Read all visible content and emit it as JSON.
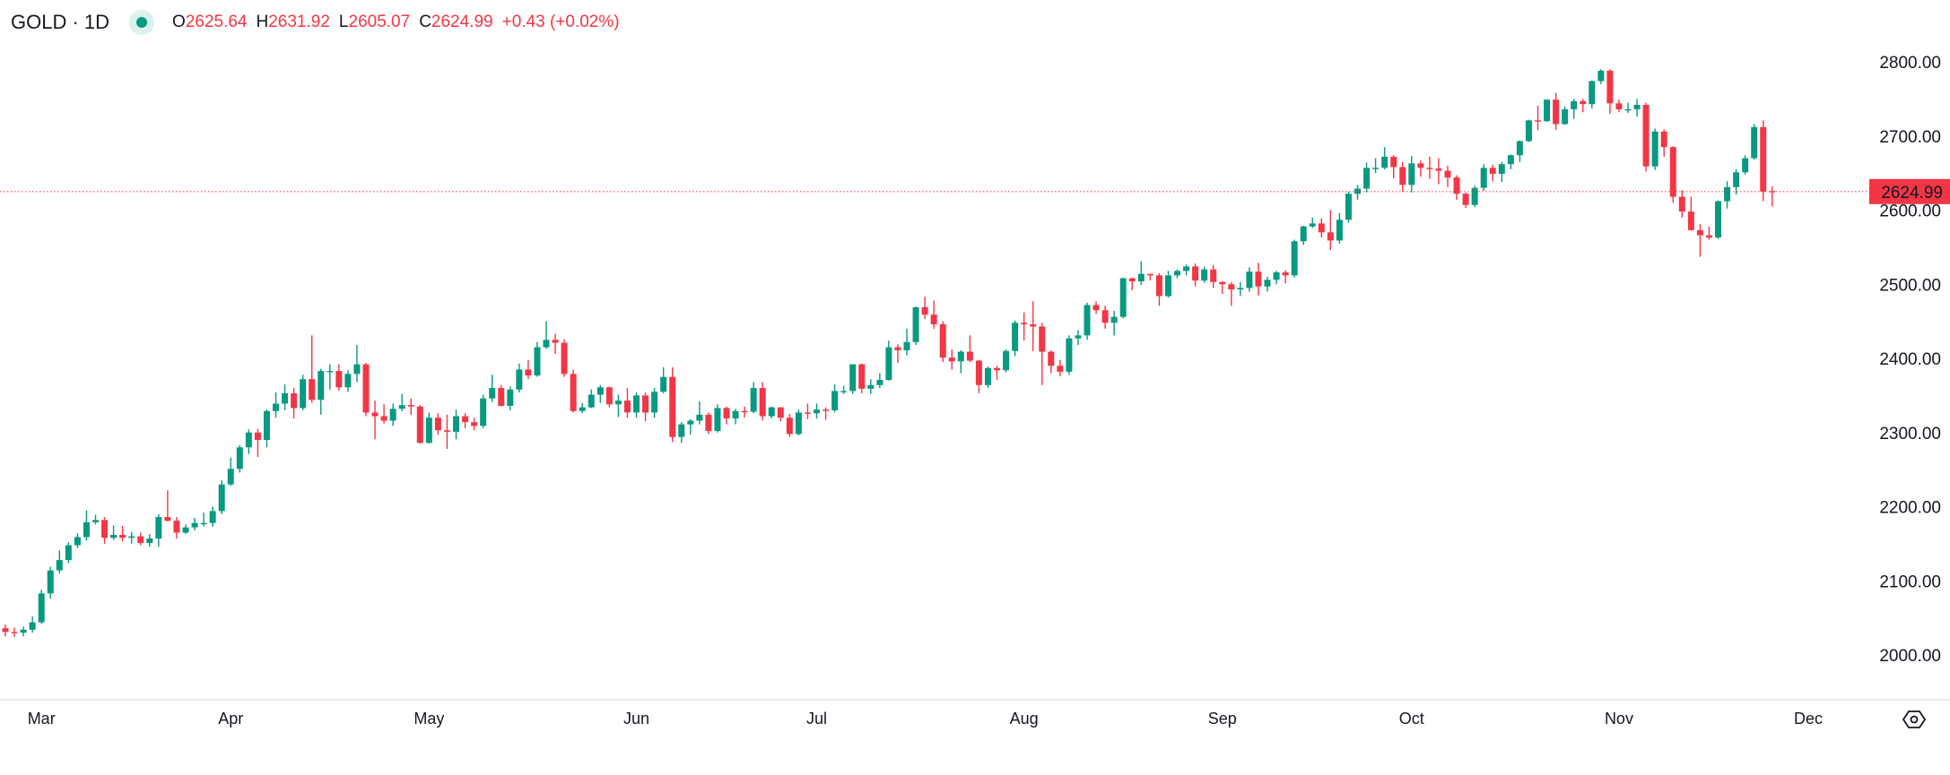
{
  "header": {
    "symbol": "GOLD · 1D",
    "market_status_icon": "market-open-dot",
    "open_key": "O",
    "open": "2625.64",
    "high_key": "H",
    "high": "2631.92",
    "low_key": "L",
    "low": "2605.07",
    "close_key": "C",
    "close": "2624.99",
    "change": "+0.43 (+0.02%)"
  },
  "colors": {
    "up": "#089981",
    "down": "#F23645",
    "last_price": "#F23645",
    "axis_text": "#131722",
    "border": "#e0e3eb"
  },
  "settings_icon": "hexagon-eye-icon",
  "chart_data": {
    "type": "candlestick",
    "interval": "1D",
    "ylim": [
      1940,
      2870
    ],
    "y_ticks": [
      "2000.00",
      "2100.00",
      "2200.00",
      "2300.00",
      "2400.00",
      "2500.00",
      "2600.00",
      "2700.00",
      "2800.00"
    ],
    "last_price": "2624.99",
    "x_ticks": [
      {
        "label": "Mar",
        "index": 4
      },
      {
        "label": "Apr",
        "index": 25
      },
      {
        "label": "May",
        "index": 47
      },
      {
        "label": "Jun",
        "index": 70
      },
      {
        "label": "Jul",
        "index": 90
      },
      {
        "label": "Aug",
        "index": 113
      },
      {
        "label": "Sep",
        "index": 135
      },
      {
        "label": "Oct",
        "index": 156
      },
      {
        "label": "Nov",
        "index": 179
      },
      {
        "label": "Dec",
        "index": 200
      }
    ],
    "ohlc": [
      [
        2036,
        2041,
        2025,
        2031
      ],
      [
        2031,
        2037,
        2024,
        2030
      ],
      [
        2030,
        2038,
        2025,
        2034
      ],
      [
        2034,
        2052,
        2030,
        2044
      ],
      [
        2044,
        2088,
        2042,
        2083
      ],
      [
        2083,
        2119,
        2076,
        2114
      ],
      [
        2114,
        2141,
        2110,
        2128
      ],
      [
        2128,
        2152,
        2124,
        2148
      ],
      [
        2148,
        2164,
        2144,
        2159
      ],
      [
        2159,
        2195,
        2154,
        2179
      ],
      [
        2179,
        2189,
        2176,
        2182
      ],
      [
        2182,
        2186,
        2150,
        2158
      ],
      [
        2158,
        2175,
        2155,
        2162
      ],
      [
        2162,
        2174,
        2153,
        2158
      ],
      [
        2158,
        2166,
        2150,
        2160
      ],
      [
        2160,
        2165,
        2148,
        2151
      ],
      [
        2151,
        2163,
        2146,
        2157
      ],
      [
        2157,
        2190,
        2146,
        2186
      ],
      [
        2186,
        2222,
        2180,
        2181
      ],
      [
        2181,
        2186,
        2157,
        2165
      ],
      [
        2165,
        2176,
        2163,
        2172
      ],
      [
        2172,
        2185,
        2168,
        2178
      ],
      [
        2178,
        2192,
        2173,
        2178
      ],
      [
        2178,
        2200,
        2173,
        2194
      ],
      [
        2194,
        2236,
        2190,
        2230
      ],
      [
        2230,
        2266,
        2228,
        2251
      ],
      [
        2251,
        2283,
        2246,
        2280
      ],
      [
        2280,
        2304,
        2271,
        2300
      ],
      [
        2300,
        2305,
        2267,
        2290
      ],
      [
        2290,
        2331,
        2280,
        2329
      ],
      [
        2329,
        2354,
        2320,
        2339
      ],
      [
        2339,
        2365,
        2330,
        2353
      ],
      [
        2353,
        2360,
        2319,
        2333
      ],
      [
        2333,
        2378,
        2330,
        2372
      ],
      [
        2372,
        2431,
        2340,
        2344
      ],
      [
        2344,
        2386,
        2324,
        2383
      ],
      [
        2383,
        2392,
        2358,
        2383
      ],
      [
        2383,
        2392,
        2356,
        2361
      ],
      [
        2361,
        2384,
        2355,
        2379
      ],
      [
        2379,
        2418,
        2368,
        2392
      ],
      [
        2392,
        2394,
        2322,
        2327
      ],
      [
        2327,
        2343,
        2291,
        2322
      ],
      [
        2322,
        2338,
        2312,
        2316
      ],
      [
        2316,
        2339,
        2309,
        2332
      ],
      [
        2332,
        2352,
        2329,
        2337
      ],
      [
        2337,
        2346,
        2324,
        2335
      ],
      [
        2335,
        2337,
        2285,
        2286
      ],
      [
        2286,
        2327,
        2285,
        2320
      ],
      [
        2320,
        2326,
        2297,
        2303
      ],
      [
        2303,
        2324,
        2278,
        2301
      ],
      [
        2301,
        2331,
        2291,
        2322
      ],
      [
        2322,
        2326,
        2306,
        2314
      ],
      [
        2314,
        2320,
        2303,
        2309
      ],
      [
        2309,
        2351,
        2306,
        2346
      ],
      [
        2346,
        2378,
        2341,
        2360
      ],
      [
        2360,
        2364,
        2335,
        2336
      ],
      [
        2336,
        2362,
        2330,
        2358
      ],
      [
        2358,
        2393,
        2354,
        2385
      ],
      [
        2385,
        2398,
        2372,
        2377
      ],
      [
        2377,
        2422,
        2375,
        2415
      ],
      [
        2415,
        2450,
        2413,
        2425
      ],
      [
        2425,
        2433,
        2406,
        2421
      ],
      [
        2421,
        2426,
        2375,
        2379
      ],
      [
        2379,
        2385,
        2327,
        2329
      ],
      [
        2329,
        2340,
        2326,
        2334
      ],
      [
        2334,
        2358,
        2333,
        2351
      ],
      [
        2351,
        2364,
        2340,
        2361
      ],
      [
        2361,
        2362,
        2334,
        2338
      ],
      [
        2338,
        2351,
        2321,
        2343
      ],
      [
        2343,
        2360,
        2320,
        2327
      ],
      [
        2327,
        2354,
        2320,
        2350
      ],
      [
        2350,
        2354,
        2315,
        2327
      ],
      [
        2327,
        2360,
        2320,
        2355
      ],
      [
        2355,
        2388,
        2353,
        2375
      ],
      [
        2375,
        2388,
        2287,
        2294
      ],
      [
        2294,
        2314,
        2286,
        2311
      ],
      [
        2311,
        2318,
        2297,
        2316
      ],
      [
        2316,
        2342,
        2311,
        2324
      ],
      [
        2324,
        2327,
        2298,
        2302
      ],
      [
        2302,
        2338,
        2300,
        2333
      ],
      [
        2333,
        2335,
        2311,
        2319
      ],
      [
        2319,
        2332,
        2311,
        2329
      ],
      [
        2329,
        2335,
        2320,
        2328
      ],
      [
        2328,
        2368,
        2326,
        2360
      ],
      [
        2360,
        2368,
        2316,
        2322
      ],
      [
        2322,
        2335,
        2319,
        2334
      ],
      [
        2334,
        2334,
        2315,
        2320
      ],
      [
        2320,
        2325,
        2294,
        2298
      ],
      [
        2298,
        2331,
        2296,
        2327
      ],
      [
        2327,
        2339,
        2318,
        2326
      ],
      [
        2326,
        2339,
        2319,
        2331
      ],
      [
        2331,
        2334,
        2317,
        2330
      ],
      [
        2330,
        2365,
        2327,
        2356
      ],
      [
        2356,
        2363,
        2352,
        2356
      ],
      [
        2356,
        2392,
        2352,
        2392
      ],
      [
        2392,
        2393,
        2353,
        2359
      ],
      [
        2359,
        2372,
        2352,
        2364
      ],
      [
        2364,
        2380,
        2360,
        2371
      ],
      [
        2371,
        2424,
        2370,
        2415
      ],
      [
        2415,
        2419,
        2394,
        2411
      ],
      [
        2411,
        2440,
        2404,
        2422
      ],
      [
        2422,
        2470,
        2418,
        2469
      ],
      [
        2469,
        2483,
        2453,
        2459
      ],
      [
        2459,
        2478,
        2440,
        2446
      ],
      [
        2446,
        2450,
        2395,
        2401
      ],
      [
        2401,
        2412,
        2385,
        2396
      ],
      [
        2396,
        2411,
        2380,
        2409
      ],
      [
        2409,
        2431,
        2395,
        2397
      ],
      [
        2397,
        2398,
        2353,
        2364
      ],
      [
        2364,
        2389,
        2360,
        2387
      ],
      [
        2387,
        2390,
        2371,
        2384
      ],
      [
        2384,
        2412,
        2381,
        2410
      ],
      [
        2410,
        2451,
        2403,
        2448
      ],
      [
        2448,
        2462,
        2424,
        2446
      ],
      [
        2446,
        2477,
        2410,
        2443
      ],
      [
        2443,
        2448,
        2364,
        2409
      ],
      [
        2409,
        2411,
        2380,
        2390
      ],
      [
        2390,
        2398,
        2376,
        2382
      ],
      [
        2382,
        2431,
        2378,
        2427
      ],
      [
        2427,
        2438,
        2418,
        2431
      ],
      [
        2431,
        2475,
        2425,
        2472
      ],
      [
        2472,
        2477,
        2460,
        2465
      ],
      [
        2465,
        2471,
        2440,
        2448
      ],
      [
        2448,
        2464,
        2431,
        2456
      ],
      [
        2456,
        2509,
        2454,
        2508
      ],
      [
        2508,
        2509,
        2492,
        2504
      ],
      [
        2504,
        2531,
        2499,
        2514
      ],
      [
        2514,
        2514,
        2505,
        2512
      ],
      [
        2512,
        2515,
        2471,
        2484
      ],
      [
        2484,
        2518,
        2482,
        2512
      ],
      [
        2512,
        2520,
        2508,
        2518
      ],
      [
        2518,
        2527,
        2512,
        2524
      ],
      [
        2524,
        2528,
        2497,
        2505
      ],
      [
        2505,
        2524,
        2502,
        2520
      ],
      [
        2520,
        2526,
        2495,
        2503
      ],
      [
        2503,
        2504,
        2487,
        2500
      ],
      [
        2500,
        2503,
        2471,
        2493
      ],
      [
        2493,
        2503,
        2484,
        2495
      ],
      [
        2495,
        2523,
        2490,
        2517
      ],
      [
        2517,
        2529,
        2485,
        2497
      ],
      [
        2497,
        2510,
        2490,
        2506
      ],
      [
        2506,
        2518,
        2500,
        2516
      ],
      [
        2516,
        2519,
        2501,
        2512
      ],
      [
        2512,
        2560,
        2509,
        2558
      ],
      [
        2558,
        2579,
        2553,
        2578
      ],
      [
        2578,
        2590,
        2576,
        2582
      ],
      [
        2582,
        2589,
        2563,
        2570
      ],
      [
        2570,
        2600,
        2546,
        2559
      ],
      [
        2559,
        2596,
        2555,
        2587
      ],
      [
        2587,
        2625,
        2583,
        2622
      ],
      [
        2622,
        2634,
        2614,
        2629
      ],
      [
        2629,
        2664,
        2624,
        2657
      ],
      [
        2657,
        2670,
        2650,
        2657
      ],
      [
        2657,
        2685,
        2655,
        2672
      ],
      [
        2672,
        2674,
        2643,
        2658
      ],
      [
        2658,
        2665,
        2625,
        2634
      ],
      [
        2634,
        2673,
        2624,
        2663
      ],
      [
        2663,
        2667,
        2645,
        2657
      ],
      [
        2657,
        2672,
        2642,
        2656
      ],
      [
        2656,
        2670,
        2635,
        2653
      ],
      [
        2653,
        2660,
        2631,
        2644
      ],
      [
        2644,
        2647,
        2614,
        2622
      ],
      [
        2622,
        2624,
        2603,
        2607
      ],
      [
        2607,
        2633,
        2604,
        2630
      ],
      [
        2630,
        2662,
        2626,
        2657
      ],
      [
        2657,
        2661,
        2639,
        2649
      ],
      [
        2649,
        2665,
        2638,
        2662
      ],
      [
        2662,
        2675,
        2655,
        2674
      ],
      [
        2674,
        2694,
        2665,
        2693
      ],
      [
        2693,
        2722,
        2692,
        2721
      ],
      [
        2721,
        2741,
        2708,
        2720
      ],
      [
        2720,
        2749,
        2719,
        2749
      ],
      [
        2749,
        2758,
        2708,
        2716
      ],
      [
        2716,
        2740,
        2715,
        2736
      ],
      [
        2736,
        2750,
        2723,
        2747
      ],
      [
        2747,
        2750,
        2732,
        2743
      ],
      [
        2743,
        2775,
        2737,
        2774
      ],
      [
        2774,
        2790,
        2770,
        2788
      ],
      [
        2788,
        2790,
        2730,
        2744
      ],
      [
        2744,
        2749,
        2732,
        2736
      ],
      [
        2736,
        2745,
        2731,
        2736
      ],
      [
        2736,
        2750,
        2726,
        2742
      ],
      [
        2742,
        2745,
        2652,
        2659
      ],
      [
        2659,
        2710,
        2654,
        2706
      ],
      [
        2706,
        2709,
        2672,
        2685
      ],
      [
        2685,
        2686,
        2610,
        2618
      ],
      [
        2618,
        2627,
        2590,
        2598
      ],
      [
        2598,
        2618,
        2572,
        2573
      ],
      [
        2573,
        2581,
        2537,
        2566
      ],
      [
        2566,
        2578,
        2560,
        2563
      ],
      [
        2563,
        2613,
        2561,
        2612
      ],
      [
        2612,
        2639,
        2602,
        2631
      ],
      [
        2631,
        2655,
        2621,
        2651
      ],
      [
        2651,
        2674,
        2648,
        2670
      ],
      [
        2670,
        2716,
        2668,
        2712
      ],
      [
        2712,
        2721,
        2612,
        2625
      ],
      [
        2625.64,
        2631.92,
        2605.07,
        2624.99
      ]
    ]
  }
}
